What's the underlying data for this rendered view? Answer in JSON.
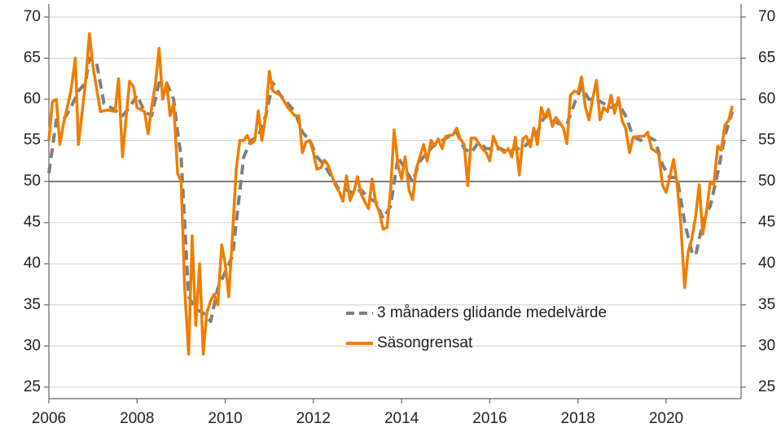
{
  "chart_data": {
    "type": "line",
    "xlim": [
      2006,
      2021.7
    ],
    "xticks": [
      2006,
      2008,
      2010,
      2012,
      2014,
      2016,
      2018,
      2020
    ],
    "ylim": [
      23.6,
      71.6
    ],
    "yticks": [
      25,
      30,
      35,
      40,
      45,
      50,
      55,
      60,
      65,
      70
    ],
    "y2lim": [
      23.6,
      71.6
    ],
    "y2ticks": [
      25,
      30,
      35,
      40,
      45,
      50,
      55,
      60,
      65,
      70
    ],
    "reference_line": 50,
    "grid": true,
    "series": [
      {
        "name": "3 månaders glidande medelvärde",
        "color": "#808080",
        "dashed": true,
        "x": [
          2006.0,
          2006.17,
          2006.33,
          2006.5,
          2006.67,
          2006.83,
          2006.92,
          2007.08,
          2007.25,
          2007.5,
          2007.67,
          2007.83,
          2008.0,
          2008.17,
          2008.33,
          2008.5,
          2008.67,
          2008.83,
          2008.92,
          2009.0,
          2009.08,
          2009.17,
          2009.33,
          2009.5,
          2009.67,
          2009.83,
          2010.0,
          2010.17,
          2010.25,
          2010.42,
          2010.58,
          2010.75,
          2010.92,
          2011.08,
          2011.25,
          2011.42,
          2011.58,
          2011.75,
          2011.92,
          2012.08,
          2012.25,
          2012.42,
          2012.58,
          2012.75,
          2012.92,
          2013.08,
          2013.25,
          2013.42,
          2013.58,
          2013.75,
          2013.92,
          2014.08,
          2014.25,
          2014.42,
          2014.58,
          2014.75,
          2014.92,
          2015.08,
          2015.25,
          2015.42,
          2015.58,
          2015.75,
          2015.92,
          2016.08,
          2016.25,
          2016.42,
          2016.58,
          2016.75,
          2016.92,
          2017.08,
          2017.25,
          2017.42,
          2017.58,
          2017.75,
          2017.92,
          2018.08,
          2018.25,
          2018.42,
          2018.58,
          2018.75,
          2018.92,
          2019.08,
          2019.25,
          2019.42,
          2019.58,
          2019.75,
          2019.92,
          2020.08,
          2020.25,
          2020.42,
          2020.58,
          2020.67,
          2020.83,
          2021.0,
          2021.17,
          2021.33,
          2021.5
        ],
        "values": [
          51,
          57.5,
          57.5,
          59,
          61,
          62,
          65,
          64.5,
          59.5,
          58.7,
          58,
          59,
          60.5,
          58.5,
          58,
          62,
          62,
          60,
          56,
          53,
          45,
          36,
          34.5,
          34,
          33,
          37,
          39,
          41,
          45,
          53,
          55,
          55.5,
          58,
          62,
          60.5,
          59.5,
          58.5,
          56,
          55,
          53,
          52,
          50.5,
          49,
          49,
          48.5,
          49,
          48,
          47.5,
          45.5,
          47,
          53,
          51.5,
          50,
          52.5,
          53.5,
          54.5,
          55,
          55.5,
          56,
          54,
          53.5,
          54.8,
          54,
          54,
          54,
          53.5,
          54,
          54,
          55,
          56,
          58,
          57.5,
          57,
          57,
          59.5,
          61.5,
          60,
          60,
          59.5,
          59,
          59.5,
          58,
          55.5,
          55,
          55.5,
          55,
          52,
          50.5,
          50.5,
          45,
          41.5,
          41,
          45,
          47,
          51,
          55.5,
          58.5
        ]
      },
      {
        "name": "Säsongrensat",
        "color": "#f07d00",
        "dashed": false,
        "x": [
          2006.0,
          2006.08,
          2006.17,
          2006.25,
          2006.33,
          2006.5,
          2006.6,
          2006.67,
          2006.83,
          2006.92,
          2007.0,
          2007.17,
          2007.33,
          2007.5,
          2007.58,
          2007.67,
          2007.83,
          2007.92,
          2008.0,
          2008.17,
          2008.25,
          2008.33,
          2008.42,
          2008.5,
          2008.58,
          2008.67,
          2008.75,
          2008.83,
          2008.92,
          2009.0,
          2009.08,
          2009.17,
          2009.25,
          2009.33,
          2009.42,
          2009.5,
          2009.58,
          2009.67,
          2009.75,
          2009.83,
          2009.92,
          2010.0,
          2010.08,
          2010.17,
          2010.25,
          2010.33,
          2010.42,
          2010.5,
          2010.58,
          2010.67,
          2010.75,
          2010.83,
          2010.92,
          2011.0,
          2011.08,
          2011.25,
          2011.42,
          2011.58,
          2011.67,
          2011.75,
          2011.83,
          2011.92,
          2012.0,
          2012.08,
          2012.17,
          2012.25,
          2012.33,
          2012.5,
          2012.58,
          2012.67,
          2012.75,
          2012.83,
          2012.92,
          2013.0,
          2013.08,
          2013.17,
          2013.25,
          2013.33,
          2013.42,
          2013.5,
          2013.58,
          2013.67,
          2013.75,
          2013.83,
          2013.92,
          2014.0,
          2014.08,
          2014.17,
          2014.25,
          2014.33,
          2014.5,
          2014.58,
          2014.67,
          2014.75,
          2014.83,
          2014.92,
          2015.0,
          2015.17,
          2015.25,
          2015.33,
          2015.42,
          2015.5,
          2015.58,
          2015.67,
          2015.83,
          2015.92,
          2016.0,
          2016.08,
          2016.17,
          2016.33,
          2016.42,
          2016.5,
          2016.58,
          2016.67,
          2016.75,
          2016.83,
          2016.92,
          2017.0,
          2017.08,
          2017.17,
          2017.25,
          2017.33,
          2017.42,
          2017.5,
          2017.67,
          2017.75,
          2017.83,
          2017.92,
          2018.0,
          2018.08,
          2018.17,
          2018.25,
          2018.33,
          2018.42,
          2018.5,
          2018.58,
          2018.67,
          2018.75,
          2018.83,
          2018.92,
          2019.0,
          2019.08,
          2019.17,
          2019.25,
          2019.42,
          2019.5,
          2019.58,
          2019.67,
          2019.83,
          2019.92,
          2020.0,
          2020.08,
          2020.17,
          2020.25,
          2020.33,
          2020.42,
          2020.5,
          2020.58,
          2020.67,
          2020.75,
          2020.83,
          2020.92,
          2021.0,
          2021.08,
          2021.17,
          2021.25,
          2021.33,
          2021.42,
          2021.5
        ],
        "values": [
          55,
          59.7,
          60,
          54.5,
          57,
          61,
          65,
          54.5,
          62,
          68,
          64,
          58.5,
          58.7,
          58.5,
          62.5,
          53,
          62.2,
          61.5,
          59,
          58.5,
          55.8,
          59,
          62,
          66.2,
          60,
          62,
          58,
          59.5,
          51,
          50,
          37,
          29,
          43.4,
          32.5,
          40,
          29,
          34,
          35.5,
          36.3,
          35,
          42.3,
          40,
          36,
          44,
          51.5,
          55,
          55,
          55.6,
          54.6,
          55,
          58.6,
          55,
          58,
          63.4,
          61,
          60.5,
          59,
          58,
          58,
          53.5,
          54.8,
          55,
          53.5,
          51.5,
          51.7,
          52.6,
          52,
          49.5,
          48.8,
          47.6,
          50.7,
          47.7,
          48.8,
          50.6,
          48.5,
          47.5,
          46.7,
          50.3,
          47.3,
          46.2,
          44.2,
          44.4,
          49,
          56.3,
          52,
          50.3,
          53,
          48.9,
          47.8,
          51.5,
          54.5,
          52.5,
          55,
          54.3,
          55.2,
          54,
          55.5,
          55.7,
          56.5,
          55.2,
          54.5,
          49.5,
          55.3,
          55.3,
          54,
          53.5,
          52.5,
          55.5,
          54.3,
          53.5,
          54,
          53,
          55.4,
          50.8,
          55.2,
          55.5,
          54.2,
          56.5,
          54.5,
          59,
          57.7,
          58.8,
          56.7,
          57.8,
          56.5,
          54.6,
          60.5,
          61,
          60.8,
          62.7,
          59,
          57.5,
          60,
          62.3,
          57.5,
          59,
          58.5,
          60.5,
          58.3,
          60.2,
          57.4,
          56.5,
          53.5,
          55.4,
          55.5,
          55.5,
          56,
          54,
          53.4,
          49.5,
          48.7,
          50.5,
          52.7,
          49.6,
          45,
          37.1,
          41.5,
          43,
          45.8,
          49.6,
          43.6,
          46.5,
          50,
          49.6,
          54.3,
          53.8,
          56.8,
          57.5,
          59.2
        ]
      }
    ]
  }
}
